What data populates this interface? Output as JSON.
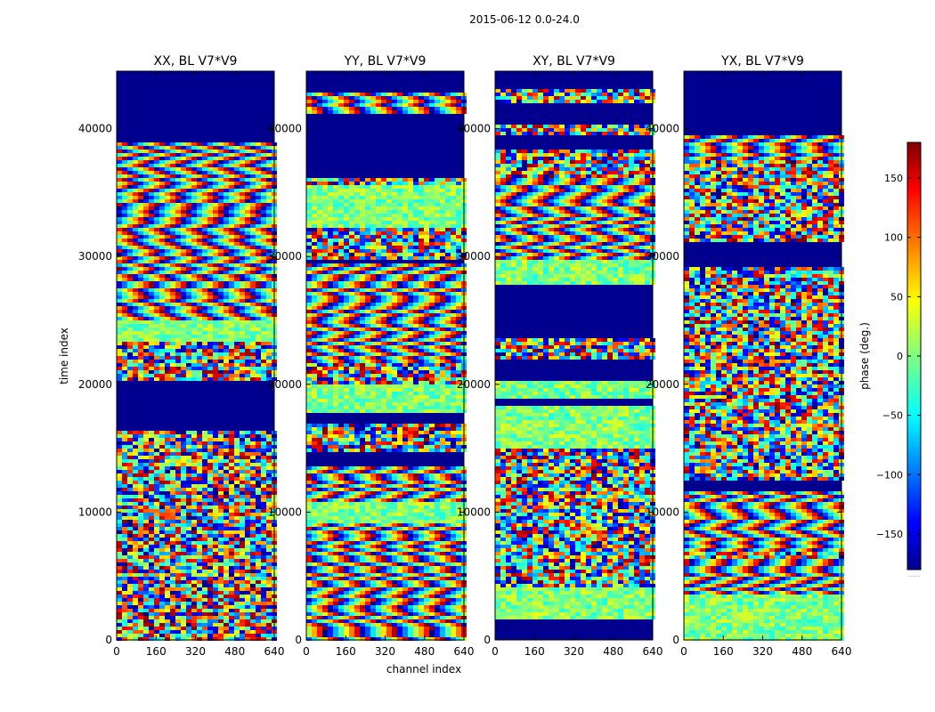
{
  "figure": {
    "suptitle": "2015-06-12 0.0-24.0",
    "xlabel": "channel index",
    "ylabel": "time index"
  },
  "colorbar": {
    "label": "phase (deg.)",
    "colormap": "jet",
    "range": [
      -180,
      180
    ],
    "ticks": [
      -150,
      -100,
      -50,
      0,
      50,
      100,
      150
    ],
    "tick_labels": [
      "−150",
      "−100",
      "−50",
      "0",
      "50",
      "100",
      "150"
    ],
    "extra_label": "......"
  },
  "chart_data": [
    {
      "type": "heatmap",
      "title": "XX, BL V7*V9",
      "xlim": [
        0,
        640
      ],
      "ylim": [
        0,
        44500
      ],
      "xticks": [
        0,
        160,
        320,
        480,
        640
      ],
      "yticks": [
        0,
        10000,
        20000,
        30000,
        40000
      ],
      "value": "phase (deg.)",
      "value_range": [
        -180,
        180
      ]
    },
    {
      "type": "heatmap",
      "title": "YY, BL V7*V9",
      "xlim": [
        0,
        640
      ],
      "ylim": [
        0,
        44500
      ],
      "xticks": [
        0,
        160,
        320,
        480,
        640
      ],
      "yticks": [
        0,
        10000,
        20000,
        30000,
        40000
      ],
      "value": "phase (deg.)",
      "value_range": [
        -180,
        180
      ]
    },
    {
      "type": "heatmap",
      "title": "XY, BL V7*V9",
      "xlim": [
        0,
        640
      ],
      "ylim": [
        0,
        44500
      ],
      "xticks": [
        0,
        160,
        320,
        480,
        640
      ],
      "yticks": [
        0,
        10000,
        20000,
        30000,
        40000
      ],
      "value": "phase (deg.)",
      "value_range": [
        -180,
        180
      ]
    },
    {
      "type": "heatmap",
      "title": "YX, BL V7*V9",
      "xlim": [
        0,
        640
      ],
      "ylim": [
        0,
        44500
      ],
      "xticks": [
        0,
        160,
        320,
        480,
        640
      ],
      "yticks": [
        0,
        10000,
        20000,
        30000,
        40000
      ],
      "value": "phase (deg.)",
      "value_range": [
        -180,
        180
      ]
    }
  ]
}
